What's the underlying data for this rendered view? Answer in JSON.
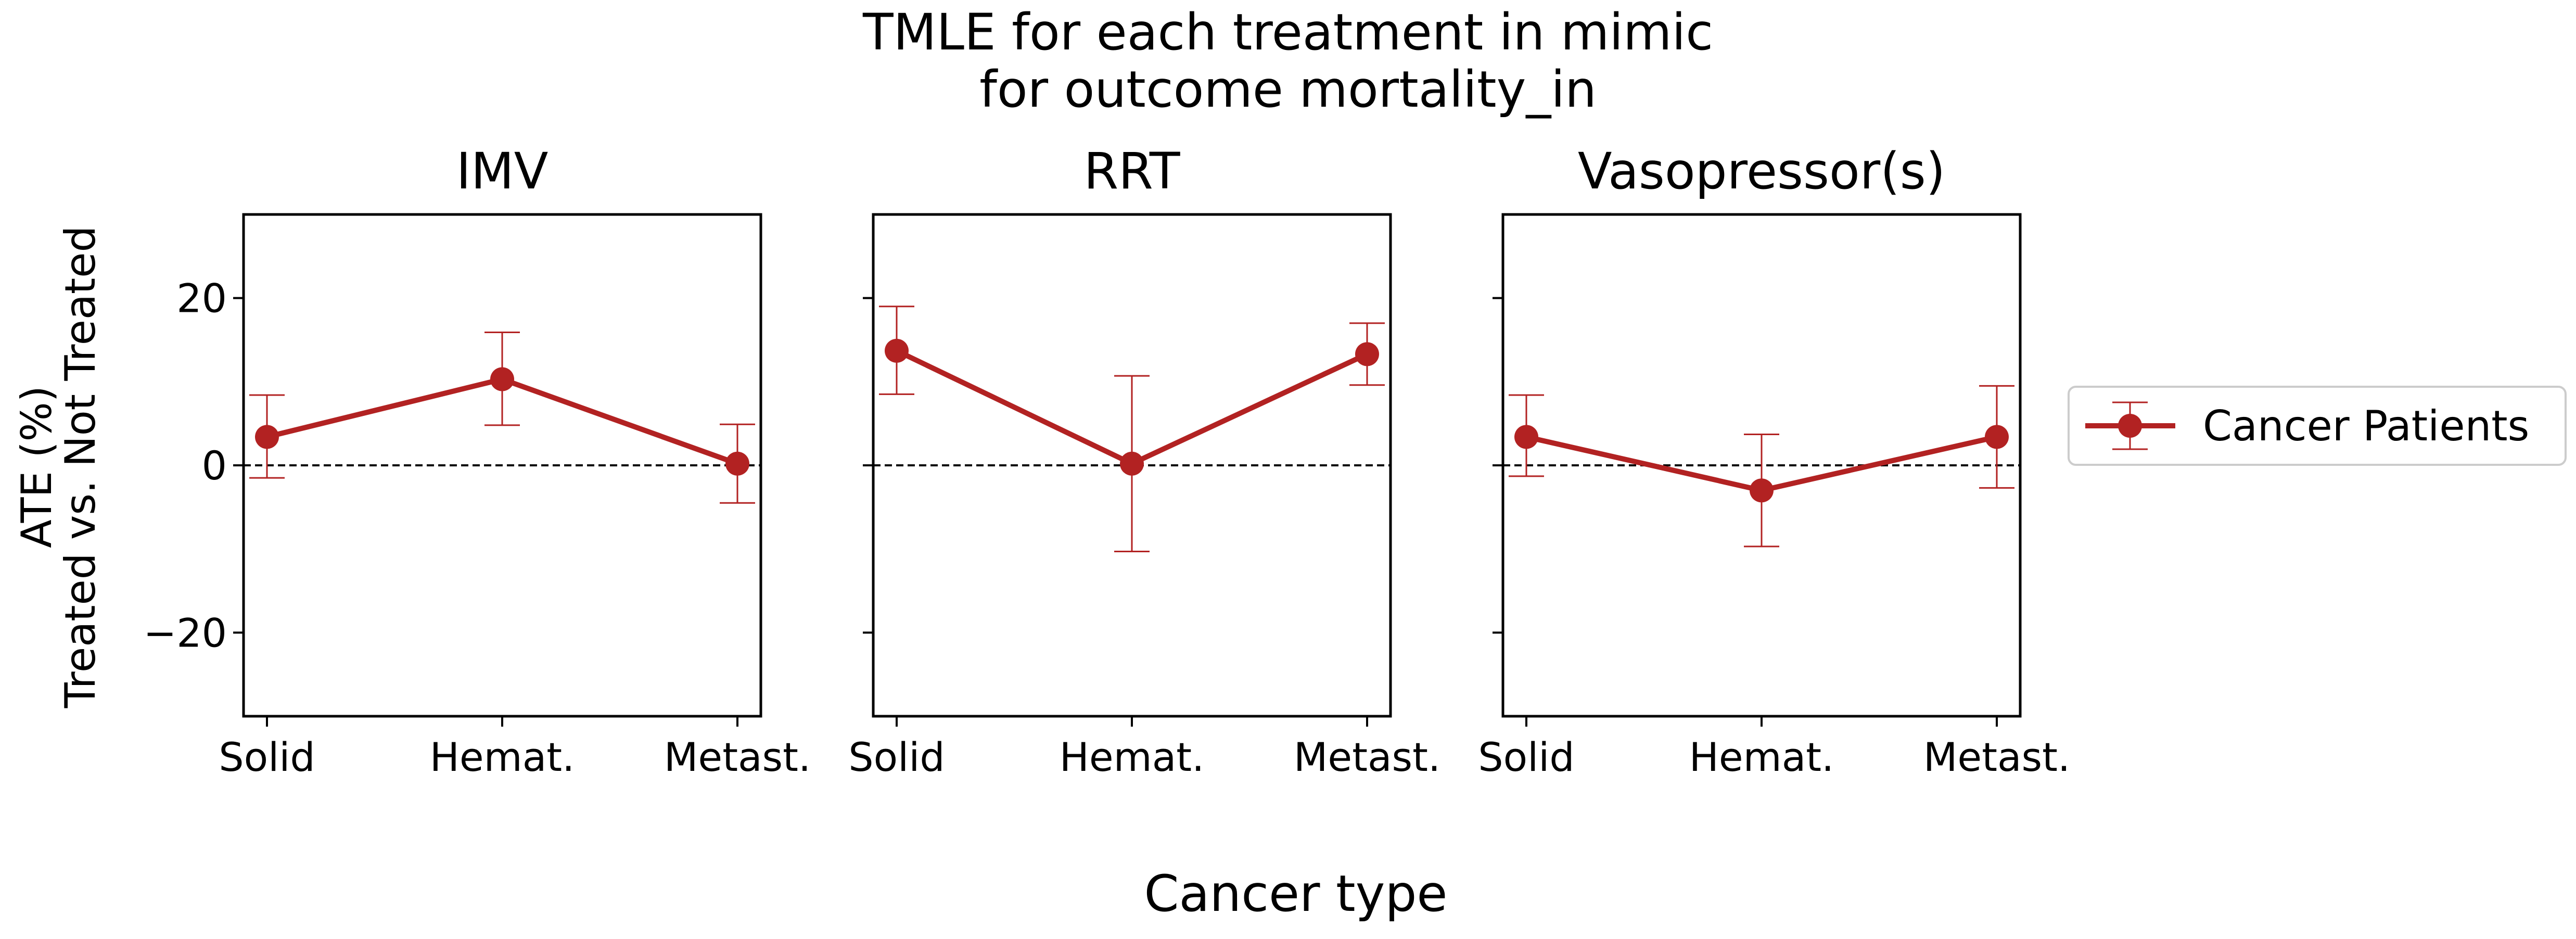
{
  "chart_data": {
    "type": "line",
    "title": "TMLE for each treatment in mimic",
    "subtitle": "for outcome mortality_in",
    "xlabel": "Cancer type",
    "ylabel": "ATE (%)",
    "ylabel2": "Treated vs. Not Treated",
    "categories": [
      "Solid",
      "Hemat.",
      "Metast."
    ],
    "ylim": [
      -30,
      30
    ],
    "yticks": [
      -20,
      0,
      20
    ],
    "ytick_labels": [
      "−20",
      "0",
      "20"
    ],
    "reference_line": 0,
    "legend": {
      "label": "Cancer Patients",
      "placement": "right"
    },
    "color": "#b22222",
    "panels": [
      {
        "title": "IMV",
        "series": [
          {
            "name": "Cancer Patients",
            "values": [
              3.4,
              10.3,
              0.2
            ],
            "lower": [
              -1.5,
              4.8,
              -4.5
            ],
            "upper": [
              8.4,
              15.9,
              4.9
            ]
          }
        ]
      },
      {
        "title": "RRT",
        "series": [
          {
            "name": "Cancer Patients",
            "values": [
              13.7,
              0.2,
              13.3
            ],
            "lower": [
              8.5,
              -10.3,
              9.6
            ],
            "upper": [
              19.0,
              10.7,
              17.0
            ]
          }
        ]
      },
      {
        "title": "Vasopressor(s)",
        "series": [
          {
            "name": "Cancer Patients",
            "values": [
              3.4,
              -3.0,
              3.4
            ],
            "lower": [
              -1.3,
              -9.7,
              -2.7
            ],
            "upper": [
              8.4,
              3.7,
              9.5
            ]
          }
        ]
      }
    ]
  }
}
